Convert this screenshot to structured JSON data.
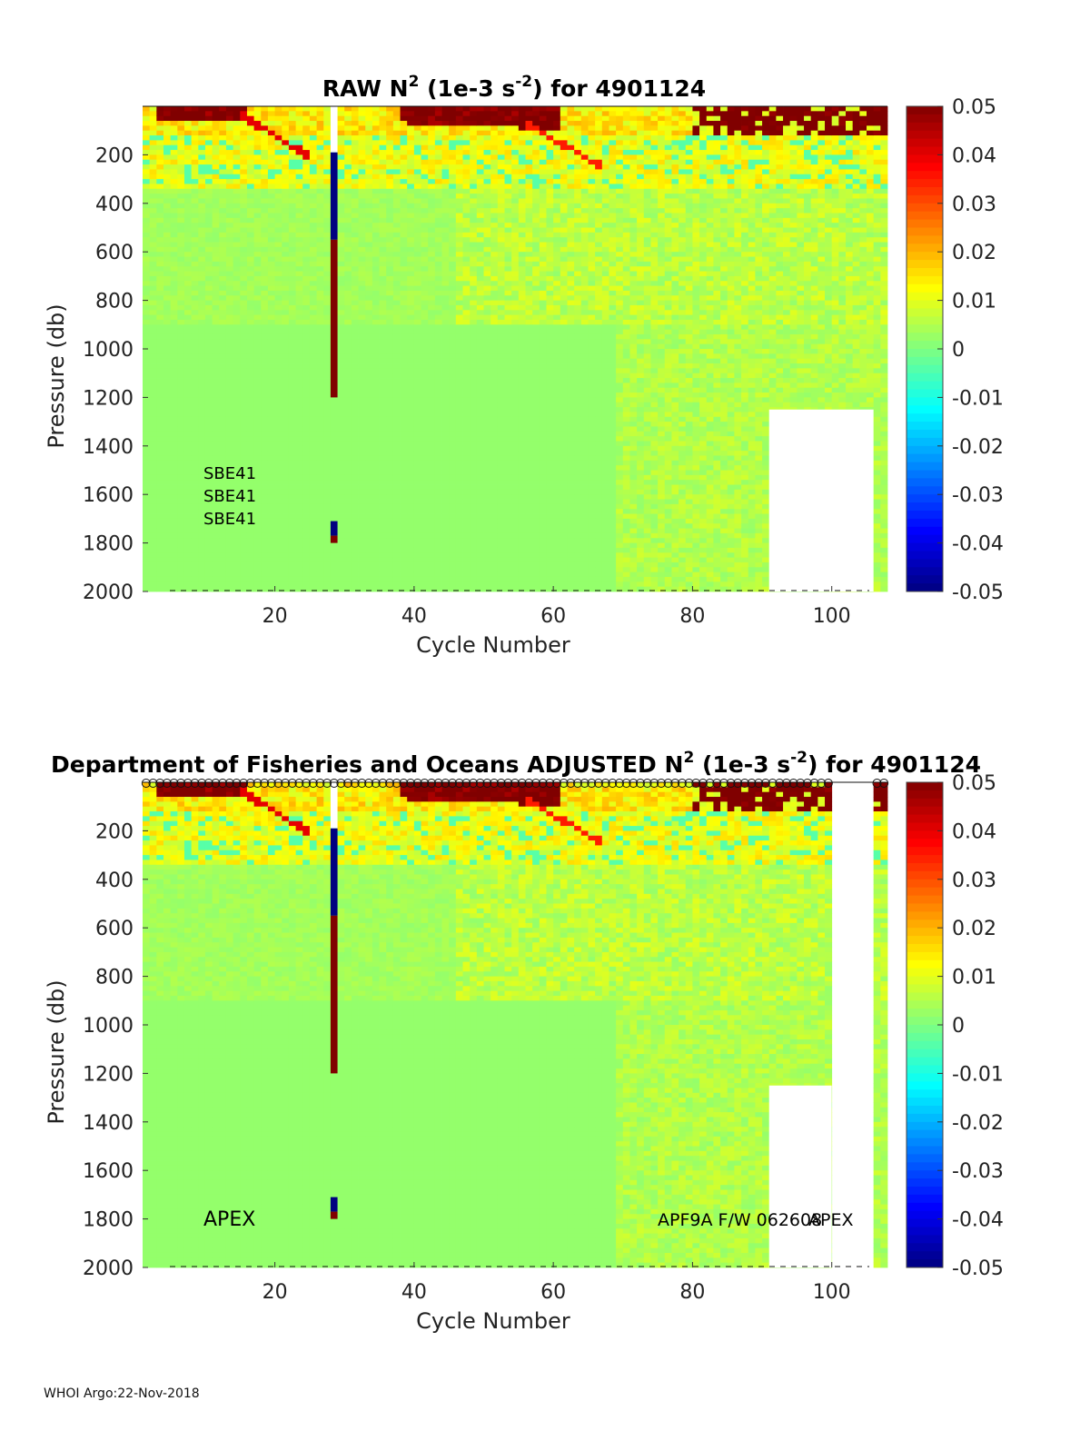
{
  "footer": "WHOI Argo:22-Nov-2018",
  "chart_data": [
    {
      "type": "heatmap",
      "panel": "raw",
      "title": "RAW N² (1e-3 s⁻²) for 4901124",
      "title_parts": {
        "pre": "RAW N",
        "sup1": "2",
        "mid": " (1e-3 s",
        "sup2": "-2",
        "post": ") for 4901124"
      },
      "xlabel": "Cycle Number",
      "ylabel": "Pressure (db)",
      "xlim": [
        1,
        107
      ],
      "ylim": [
        2000,
        0
      ],
      "xticks": [
        20,
        40,
        60,
        80,
        100
      ],
      "yticks": [
        200,
        400,
        600,
        800,
        1000,
        1200,
        1400,
        1600,
        1800,
        2000
      ],
      "colorbar": {
        "range": [
          -0.05,
          0.05
        ],
        "ticks": [
          "0.05",
          "0.04",
          "0.03",
          "0.02",
          "0.01",
          "0",
          "-0.01",
          "-0.02",
          "-0.03",
          "-0.04",
          "-0.05"
        ]
      },
      "annotations": [
        "SBE41",
        "SBE41",
        "SBE41"
      ],
      "background_value": 0.002,
      "features": [
        {
          "kind": "near-surface stratification",
          "cycles": [
            2,
            107
          ],
          "pressure": [
            0,
            350
          ],
          "value": 0.012
        },
        {
          "kind": "strong surface layer",
          "cycles": [
            3,
            15
          ],
          "pressure": [
            0,
            60
          ],
          "value": 0.05
        },
        {
          "kind": "strong surface layer",
          "cycles": [
            38,
            60
          ],
          "pressure": [
            0,
            90
          ],
          "value": 0.05
        },
        {
          "kind": "strong surface layer",
          "cycles": [
            80,
            107
          ],
          "pressure": [
            0,
            150
          ],
          "value": 0.05
        },
        {
          "kind": "suspect profile (negative)",
          "cycle": 28,
          "pressure": [
            190,
            550
          ],
          "value": -0.05
        },
        {
          "kind": "suspect profile (positive)",
          "cycle": 28,
          "pressure": [
            550,
            1200
          ],
          "value": 0.05
        },
        {
          "kind": "suspect profile (negative)",
          "cycle": 28,
          "pressure": [
            1710,
            1770
          ],
          "value": -0.05
        },
        {
          "kind": "suspect profile (positive)",
          "cycle": 28,
          "pressure": [
            1770,
            1800
          ],
          "value": 0.05
        },
        {
          "kind": "missing data",
          "cycles": [
            91,
            105
          ],
          "pressure": [
            1250,
            2000
          ]
        }
      ]
    },
    {
      "type": "heatmap",
      "panel": "adjusted",
      "title": "Department of Fisheries and Oceans  ADJUSTED N² (1e-3 s⁻²) for 4901124",
      "title_parts": {
        "pre": "Department of Fisheries and Oceans  ADJUSTED N",
        "sup1": "2",
        "mid": " (1e-3 s",
        "sup2": "-2",
        "post": ") for 4901124"
      },
      "xlabel": "Cycle Number",
      "ylabel": "Pressure (db)",
      "xlim": [
        1,
        107
      ],
      "ylim": [
        2000,
        0
      ],
      "xticks": [
        20,
        40,
        60,
        80,
        100
      ],
      "yticks": [
        200,
        400,
        600,
        800,
        1000,
        1200,
        1400,
        1600,
        1800,
        2000
      ],
      "colorbar": {
        "range": [
          -0.05,
          0.05
        ],
        "ticks": [
          "0.05",
          "0.04",
          "0.03",
          "0.02",
          "0.01",
          "0",
          "-0.01",
          "-0.02",
          "-0.03",
          "-0.04",
          "-0.05"
        ]
      },
      "annotations": [
        "APEX",
        "APF9A F/W 062608",
        "APEX"
      ],
      "qc_marker_rows": "o",
      "missing_cycles": [
        100,
        105
      ],
      "features": [
        {
          "kind": "suspect profile (negative)",
          "cycle": 28,
          "pressure": [
            190,
            550
          ],
          "value": -0.05
        },
        {
          "kind": "suspect profile (positive)",
          "cycle": 28,
          "pressure": [
            550,
            1200
          ],
          "value": 0.05
        },
        {
          "kind": "suspect profile (negative)",
          "cycle": 28,
          "pressure": [
            1710,
            1770
          ],
          "value": -0.05
        },
        {
          "kind": "suspect profile (positive)",
          "cycle": 28,
          "pressure": [
            1770,
            1800
          ],
          "value": 0.05
        },
        {
          "kind": "missing data",
          "cycles": [
            91,
            99
          ],
          "pressure": [
            1250,
            2000
          ]
        }
      ]
    }
  ]
}
